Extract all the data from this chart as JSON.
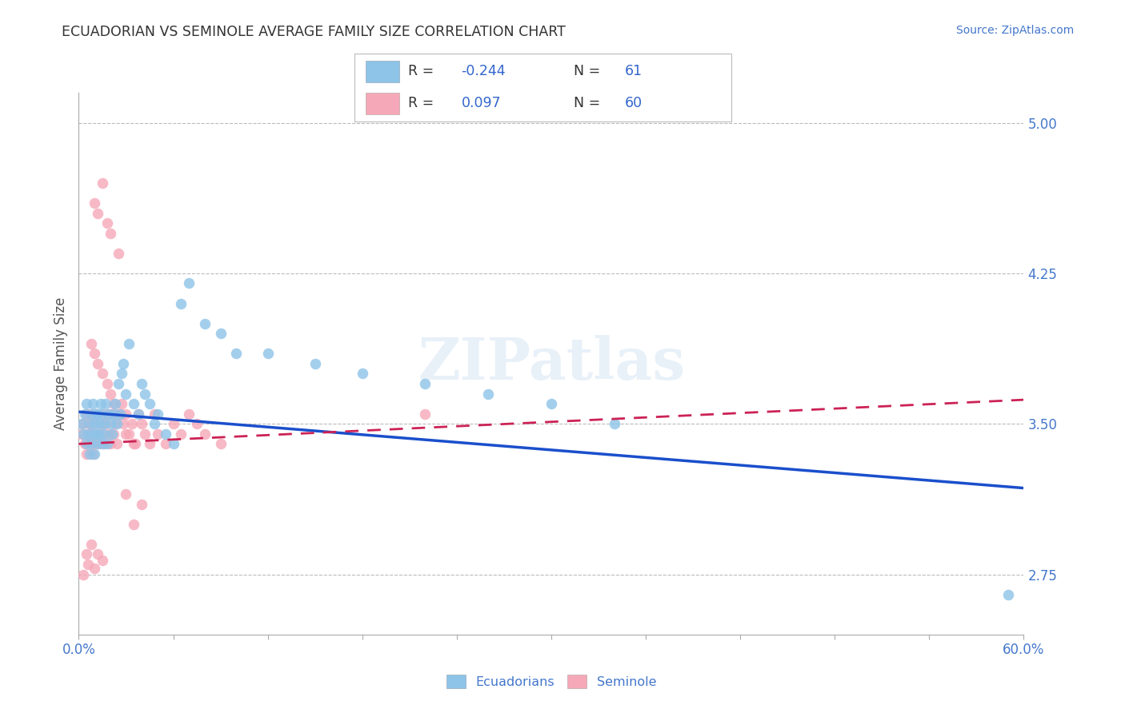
{
  "title": "ECUADORIAN VS SEMINOLE AVERAGE FAMILY SIZE CORRELATION CHART",
  "source_text": "Source: ZipAtlas.com",
  "ylabel": "Average Family Size",
  "xlim": [
    0.0,
    0.6
  ],
  "ylim": [
    2.45,
    5.15
  ],
  "yticks": [
    2.75,
    3.5,
    4.25,
    5.0
  ],
  "xticks": [
    0.0,
    0.06,
    0.12,
    0.18,
    0.24,
    0.3,
    0.36,
    0.42,
    0.48,
    0.54,
    0.6
  ],
  "blue_R": -0.244,
  "blue_N": 61,
  "pink_R": 0.097,
  "pink_N": 60,
  "blue_color": "#8ec4e8",
  "pink_color": "#f5a8b8",
  "blue_line_color": "#1a4fcc",
  "pink_line_color": "#cc2255",
  "watermark": "ZIPatlas",
  "legend_label_blue": "Ecuadorians",
  "legend_label_pink": "Seminole",
  "blue_line_y0": 3.56,
  "blue_line_y1": 3.18,
  "pink_line_y0": 3.4,
  "pink_line_y1": 3.62,
  "background_color": "#ffffff",
  "grid_color": "#bbbbbb",
  "title_color": "#333333",
  "tick_label_color": "#4477cc",
  "legend_R_color": "#222222",
  "legend_val_color": "#3366cc"
}
